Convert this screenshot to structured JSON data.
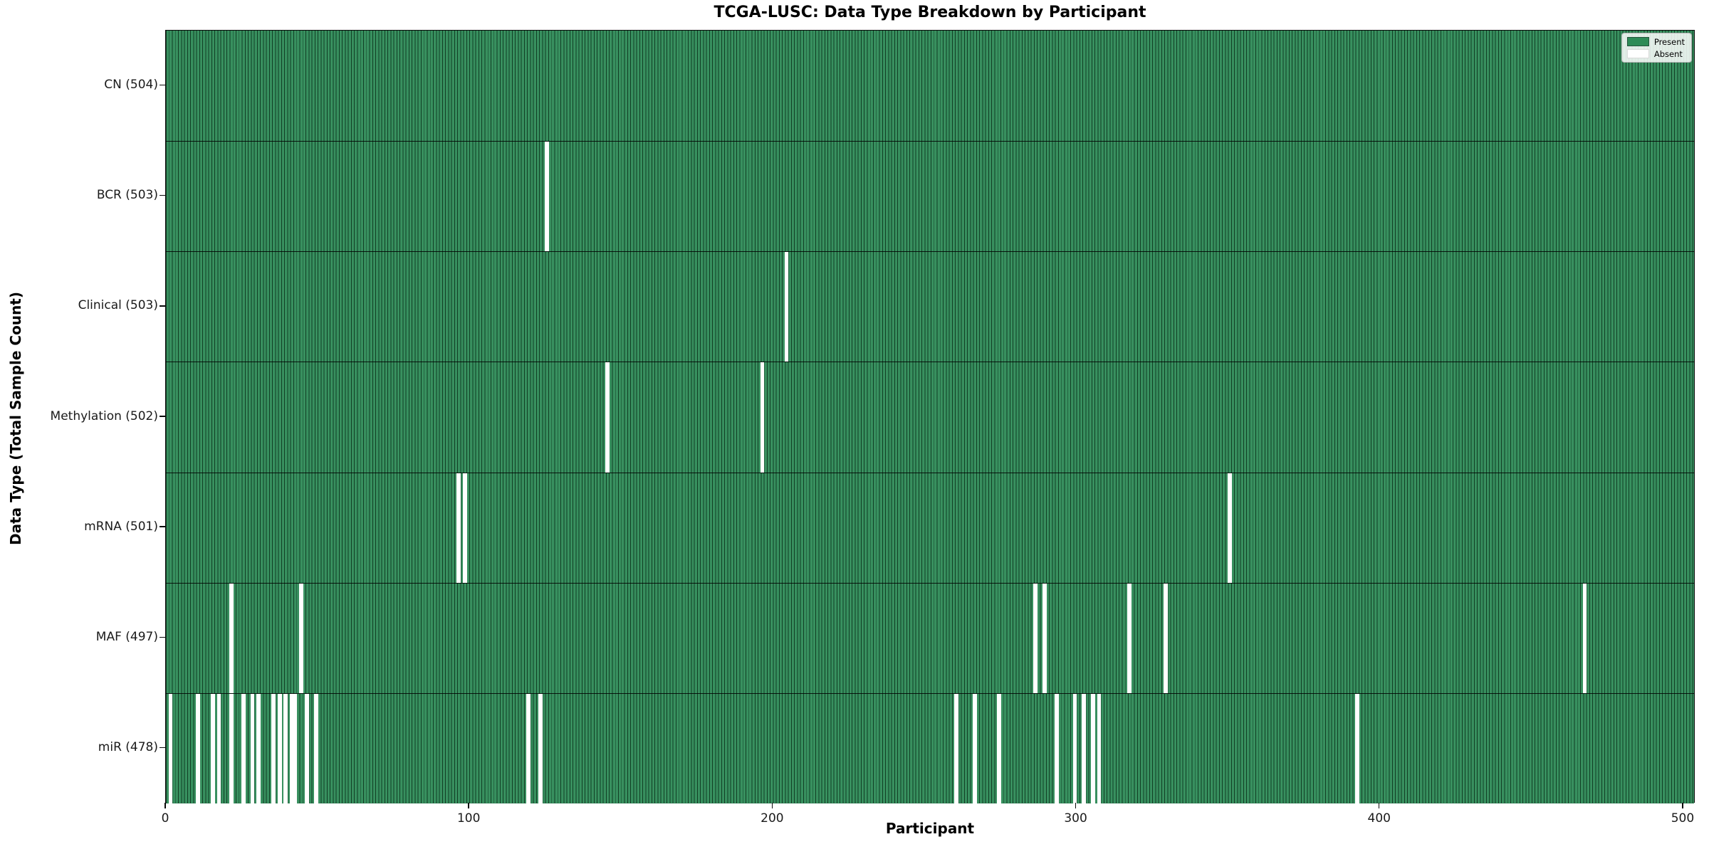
{
  "chart_data": {
    "type": "heatmap",
    "title": "TCGA-LUSC: Data Type Breakdown by Participant",
    "xlabel": "Participant",
    "ylabel": "Data Type (Total Sample Count)",
    "x_ticks": [
      0,
      100,
      200,
      300,
      400,
      500
    ],
    "xlim": [
      0,
      504
    ],
    "n_participants": 504,
    "grid": false,
    "legend": {
      "position": "upper-right",
      "present_label": "Present",
      "absent_label": "Absent"
    },
    "colors": {
      "present": "#2e8b57",
      "absent": "#ffffff",
      "bar_edge": "#143b26",
      "background": "#ffffff"
    },
    "rows": [
      {
        "label": "CN (504)",
        "name": "CN",
        "total": 504,
        "absent_participants": []
      },
      {
        "label": "BCR (503)",
        "name": "BCR",
        "total": 503,
        "absent_participants": [
          125
        ]
      },
      {
        "label": "Clinical (503)",
        "name": "Clinical",
        "total": 503,
        "absent_participants": [
          204
        ]
      },
      {
        "label": "Methylation (502)",
        "name": "Methylation",
        "total": 502,
        "absent_participants": [
          145,
          196
        ]
      },
      {
        "label": "mRNA (501)",
        "name": "mRNA",
        "total": 501,
        "absent_participants": [
          96,
          98,
          350
        ]
      },
      {
        "label": "MAF (497)",
        "name": "MAF",
        "total": 497,
        "absent_participants": [
          21,
          44,
          286,
          289,
          317,
          329,
          467
        ]
      },
      {
        "label": "miR (478)",
        "name": "miR",
        "total": 478,
        "absent_participants": [
          1,
          10,
          15,
          17,
          21,
          25,
          28,
          30,
          35,
          37,
          39,
          41,
          42,
          46,
          49,
          119,
          123,
          260,
          266,
          274,
          293,
          299,
          302,
          305,
          307,
          392
        ]
      }
    ]
  }
}
